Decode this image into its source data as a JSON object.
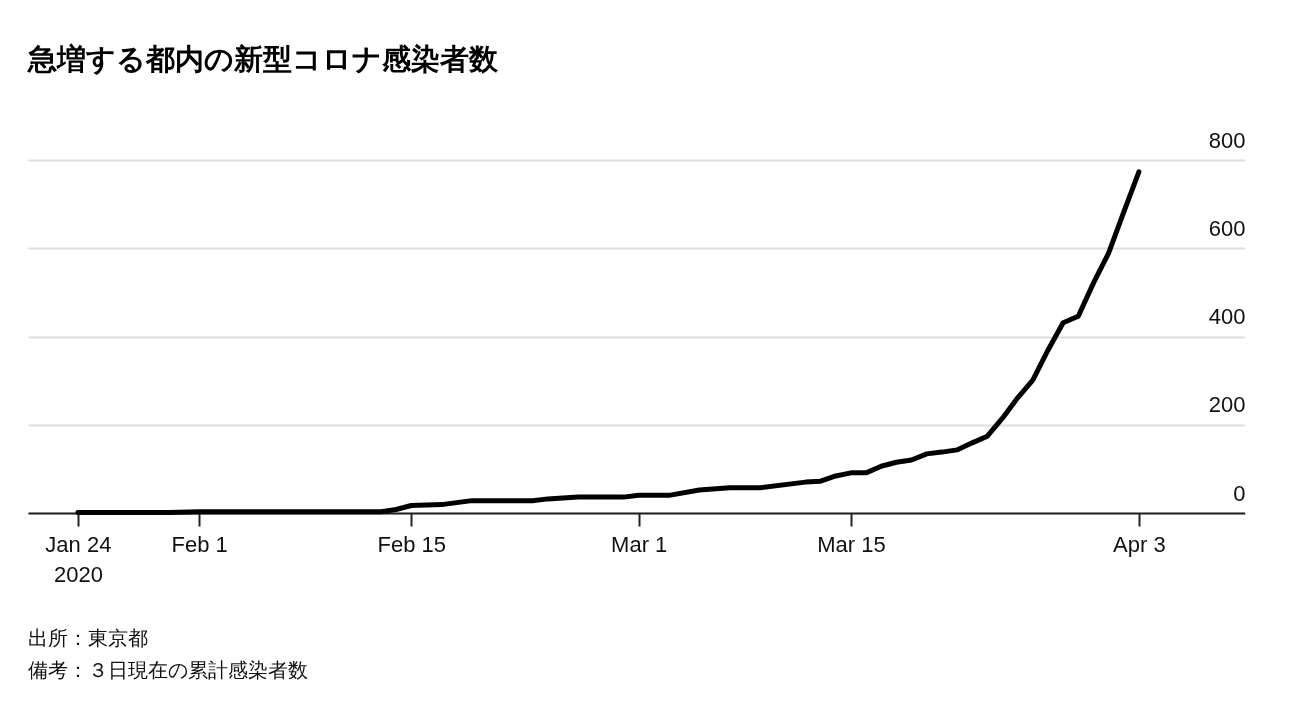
{
  "chart_data": {
    "type": "line",
    "title": "急増する都内の新型コロナ感染者数",
    "x": [
      "2020-01-24",
      "2020-01-30",
      "2020-02-01",
      "2020-02-13",
      "2020-02-14",
      "2020-02-15",
      "2020-02-17",
      "2020-02-19",
      "2020-02-23",
      "2020-02-24",
      "2020-02-26",
      "2020-02-29",
      "2020-03-01",
      "2020-03-03",
      "2020-03-05",
      "2020-03-07",
      "2020-03-09",
      "2020-03-12",
      "2020-03-13",
      "2020-03-14",
      "2020-03-15",
      "2020-03-16",
      "2020-03-17",
      "2020-03-18",
      "2020-03-19",
      "2020-03-20",
      "2020-03-21",
      "2020-03-22",
      "2020-03-23",
      "2020-03-24",
      "2020-03-25",
      "2020-03-26",
      "2020-03-27",
      "2020-03-28",
      "2020-03-29",
      "2020-03-30",
      "2020-03-31",
      "2020-04-01",
      "2020-04-02",
      "2020-04-03"
    ],
    "series": [
      {
        "color": "#000000",
        "values": [
          1,
          1,
          3,
          3,
          8,
          17,
          19,
          28,
          28,
          32,
          36,
          36,
          40,
          40,
          52,
          57,
          57,
          70,
          72,
          84,
          91,
          91,
          106,
          115,
          120,
          134,
          138,
          143,
          159,
          174,
          215,
          261,
          301,
          369,
          431,
          446,
          521,
          589,
          682,
          773
        ]
      }
    ],
    "xlim": [
      "2020-01-20T17:00",
      "2020-04-10"
    ],
    "xticks": [
      {
        "value": "2020-01-24",
        "label": "Jan 24\n2020"
      },
      {
        "value": "2020-02-01",
        "label": "Feb 1"
      },
      {
        "value": "2020-02-15",
        "label": "Feb 15"
      },
      {
        "value": "2020-03-01",
        "label": "Mar 1"
      },
      {
        "value": "2020-03-15",
        "label": "Mar 15"
      },
      {
        "value": "2020-04-03",
        "label": "Apr 3"
      }
    ],
    "ylim": [
      0,
      800
    ],
    "yticks": [
      0,
      200,
      400,
      600,
      800
    ],
    "grid": "y",
    "line_style": "solid",
    "annotations": [
      "出所：東京都",
      "備考：３日現在の累計感染者数"
    ]
  }
}
